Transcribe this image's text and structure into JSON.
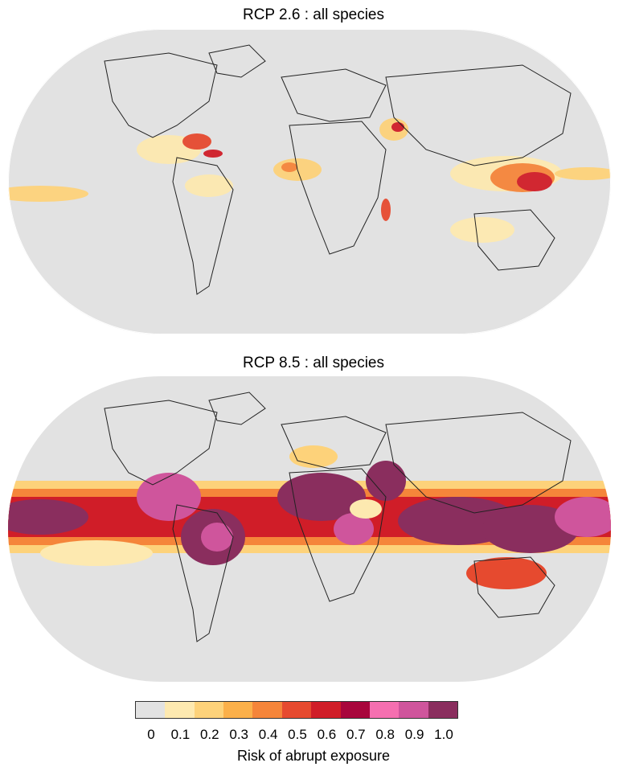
{
  "maps": [
    {
      "title": "RCP 2.6 : all species"
    },
    {
      "title": "RCP 8.5 : all species"
    }
  ],
  "legend": {
    "label": "Risk of abrupt exposure",
    "ticks": [
      "0",
      "0.1",
      "0.2",
      "0.3",
      "0.4",
      "0.5",
      "0.6",
      "0.7",
      "0.8",
      "0.9",
      "1.0"
    ],
    "colors": [
      "#e2e2e2",
      "#fde9b0",
      "#fdd27a",
      "#fbb04a",
      "#f5853a",
      "#e64a2f",
      "#d01d28",
      "#a8063c",
      "#f56fb0",
      "#cf559c",
      "#8a2e5e"
    ]
  },
  "palette": {
    "ocean_land": "#e2e2e2",
    "border": "#ffffff",
    "coast": "#000000"
  }
}
